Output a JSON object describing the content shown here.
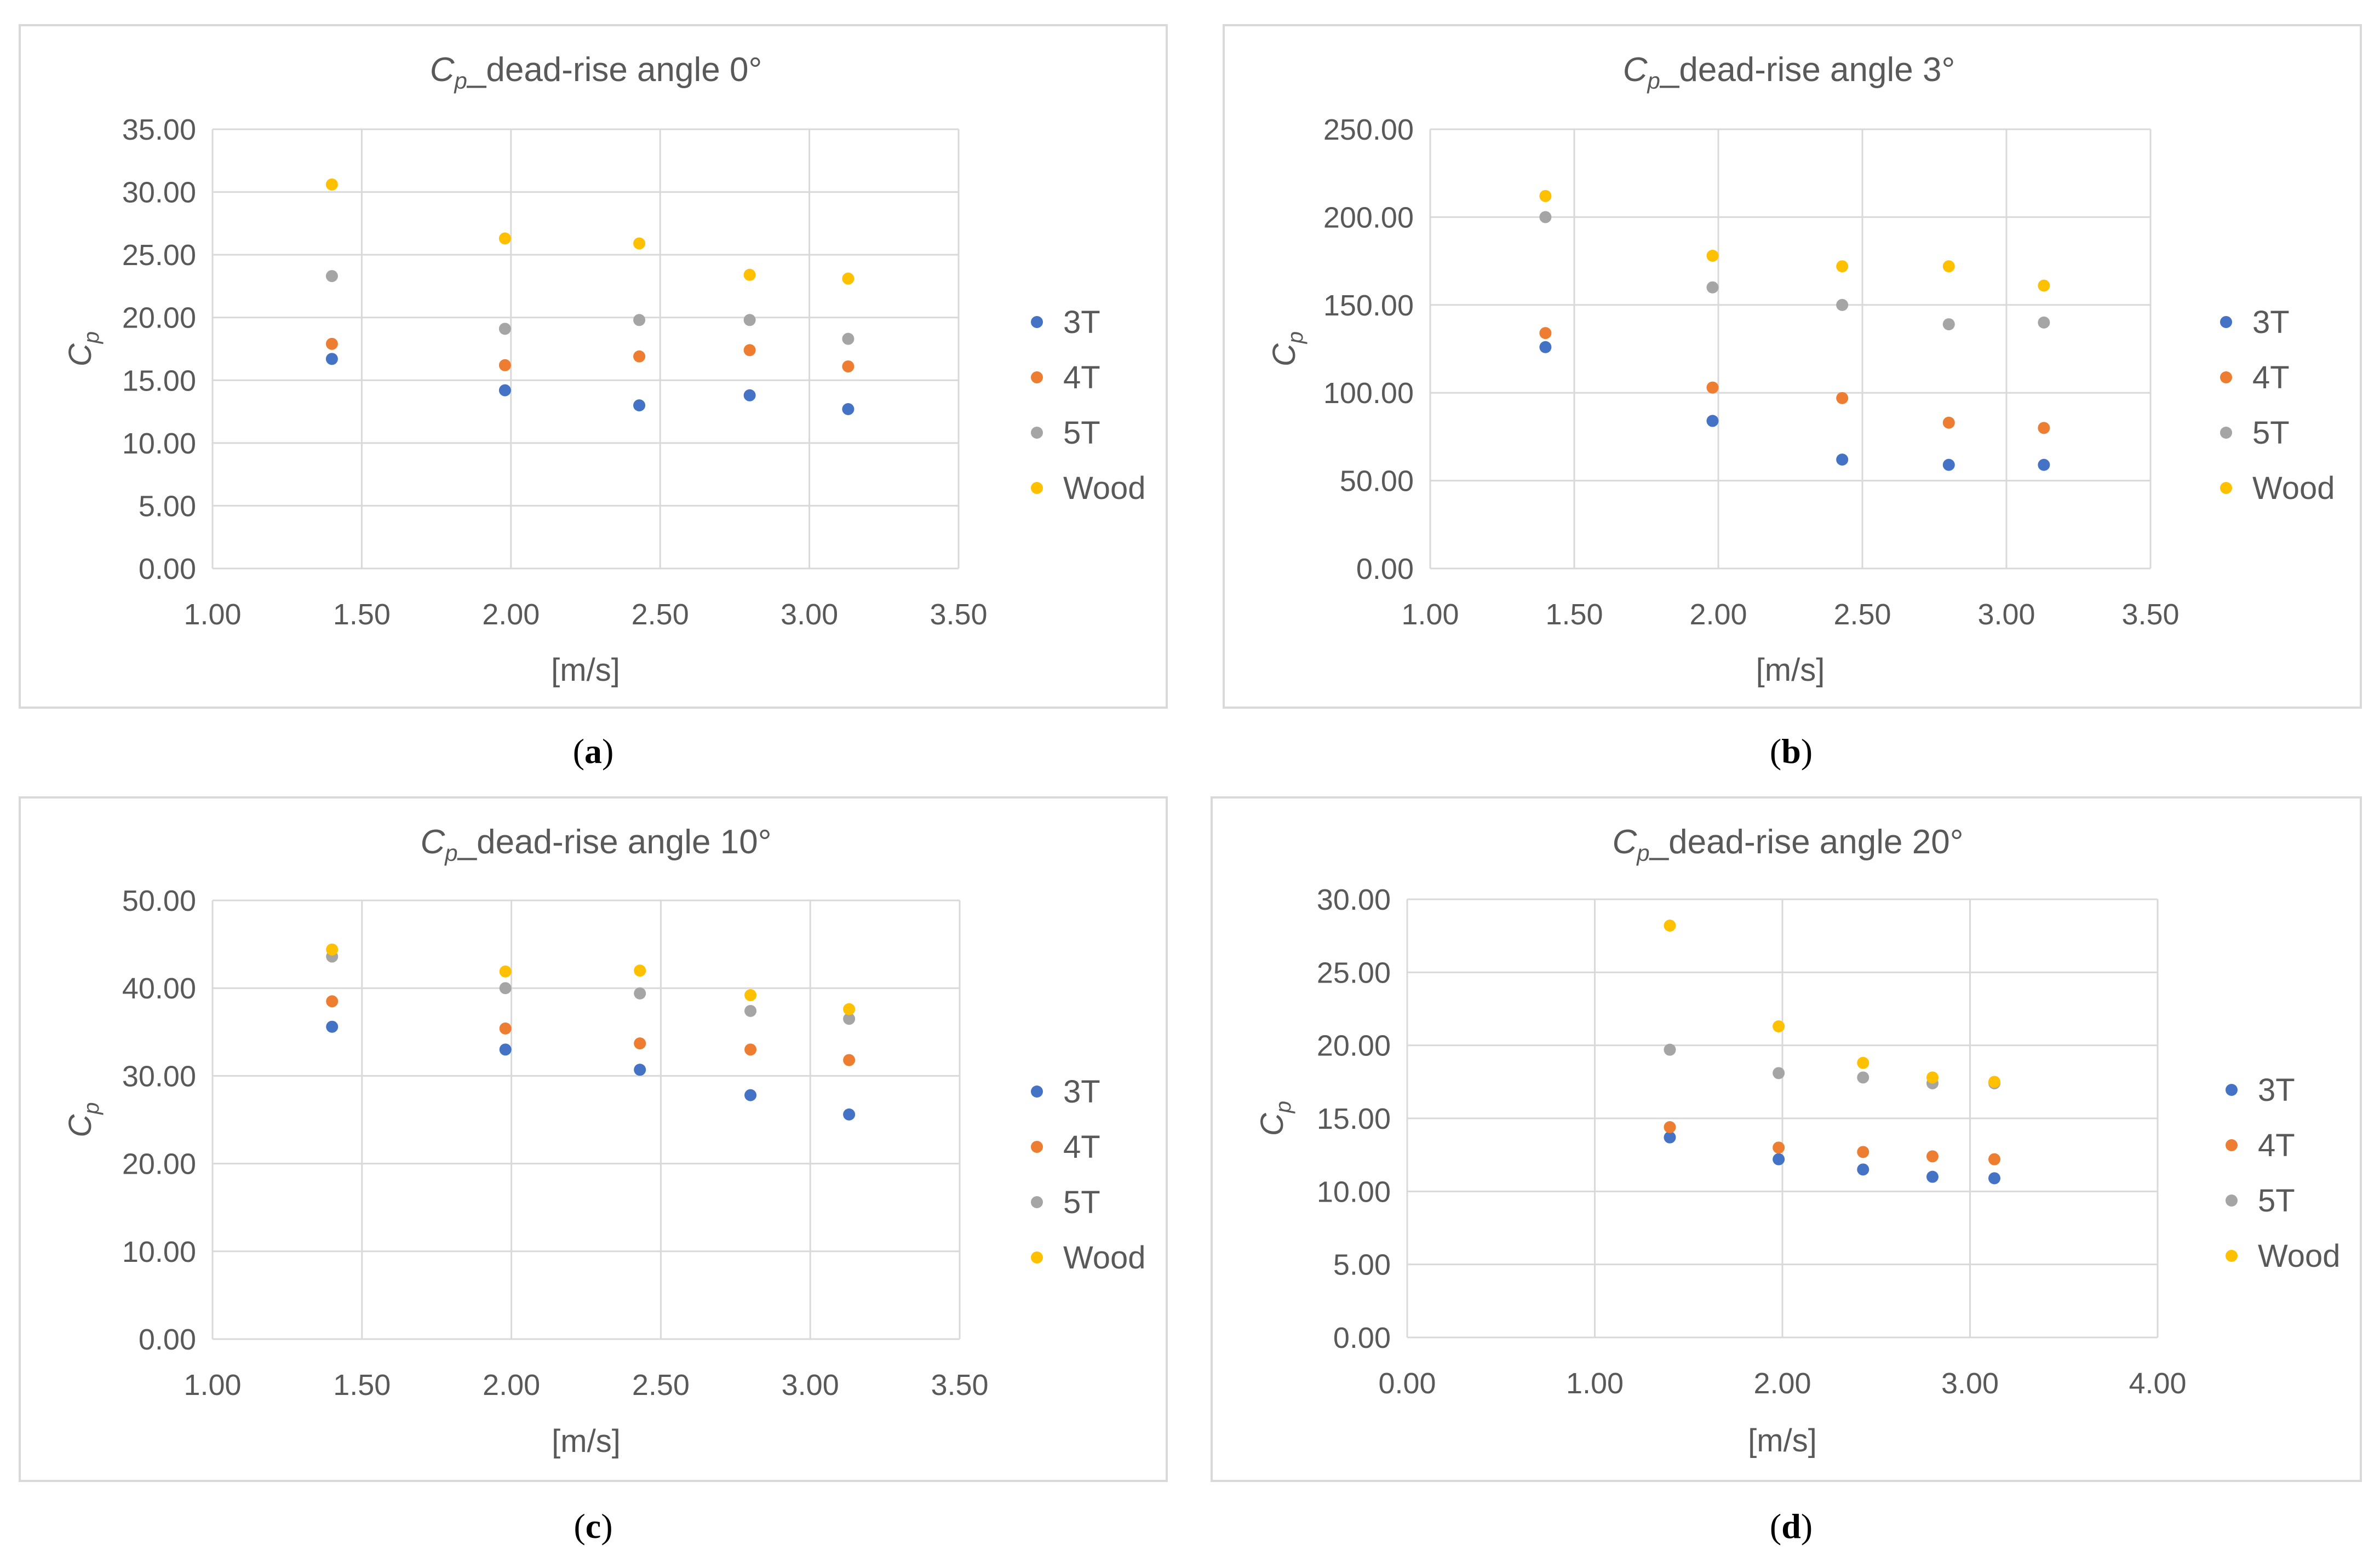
{
  "figure": {
    "captions": [
      "(a)",
      "(b)",
      "(c)",
      "(d)"
    ]
  },
  "chart_data": [
    {
      "type": "scatter",
      "title_symbol": "C",
      "title_subscript": "p",
      "title_suffix": "_dead-rise angle 0°",
      "xlabel": "[m/s]",
      "ylabel_symbol": "C",
      "ylabel_subscript": "p",
      "xlim": [
        1.0,
        3.5
      ],
      "ylim": [
        0,
        35
      ],
      "xticks": [
        "1.00",
        "1.50",
        "2.00",
        "2.50",
        "3.00",
        "3.50"
      ],
      "yticks": [
        "0.00",
        "5.00",
        "10.00",
        "15.00",
        "20.00",
        "25.00",
        "30.00",
        "35.00"
      ],
      "grid": true,
      "legend_position": "right",
      "x": [
        1.4,
        1.98,
        2.43,
        2.8,
        3.13
      ],
      "series": [
        {
          "name": "3T",
          "color": "#4472C4",
          "values": [
            16.7,
            14.2,
            13.0,
            13.8,
            12.7
          ]
        },
        {
          "name": "4T",
          "color": "#ED7D31",
          "values": [
            17.9,
            16.2,
            16.9,
            17.4,
            16.1
          ]
        },
        {
          "name": "5T",
          "color": "#A5A5A5",
          "values": [
            23.3,
            19.1,
            19.8,
            19.8,
            18.3
          ]
        },
        {
          "name": "Wood",
          "color": "#FFC000",
          "values": [
            30.6,
            26.3,
            25.9,
            23.4,
            23.1
          ]
        }
      ]
    },
    {
      "type": "scatter",
      "title_symbol": "C",
      "title_subscript": "p",
      "title_suffix": "_dead-rise angle 3°",
      "xlabel": "[m/s]",
      "ylabel_symbol": "C",
      "ylabel_subscript": "p",
      "xlim": [
        1.0,
        3.5
      ],
      "ylim": [
        0,
        250
      ],
      "xticks": [
        "1.00",
        "1.50",
        "2.00",
        "2.50",
        "3.00",
        "3.50"
      ],
      "yticks": [
        "0.00",
        "50.00",
        "100.00",
        "150.00",
        "200.00",
        "250.00"
      ],
      "grid": true,
      "legend_position": "right",
      "x": [
        1.4,
        1.98,
        2.43,
        2.8,
        3.13
      ],
      "series": [
        {
          "name": "3T",
          "color": "#4472C4",
          "values": [
            126,
            84,
            62,
            59,
            59
          ]
        },
        {
          "name": "4T",
          "color": "#ED7D31",
          "values": [
            134,
            103,
            97,
            83,
            80
          ]
        },
        {
          "name": "5T",
          "color": "#A5A5A5",
          "values": [
            200,
            160,
            150,
            139,
            140
          ]
        },
        {
          "name": "Wood",
          "color": "#FFC000",
          "values": [
            212,
            178,
            172,
            172,
            161
          ]
        }
      ]
    },
    {
      "type": "scatter",
      "title_symbol": "C",
      "title_subscript": "p",
      "title_suffix": "_dead-rise angle 10°",
      "xlabel": "[m/s]",
      "ylabel_symbol": "C",
      "ylabel_subscript": "p",
      "xlim": [
        1.0,
        3.5
      ],
      "ylim": [
        0,
        50
      ],
      "xticks": [
        "1.00",
        "1.50",
        "2.00",
        "2.50",
        "3.00",
        "3.50"
      ],
      "yticks": [
        "0.00",
        "10.00",
        "20.00",
        "30.00",
        "40.00",
        "50.00"
      ],
      "grid": true,
      "legend_position": "right",
      "x": [
        1.4,
        1.98,
        2.43,
        2.8,
        3.13
      ],
      "series": [
        {
          "name": "3T",
          "color": "#4472C4",
          "values": [
            35.6,
            33.0,
            30.7,
            27.8,
            25.6
          ]
        },
        {
          "name": "4T",
          "color": "#ED7D31",
          "values": [
            38.5,
            35.4,
            33.7,
            33.0,
            31.8
          ]
        },
        {
          "name": "5T",
          "color": "#A5A5A5",
          "values": [
            43.6,
            40.0,
            39.4,
            37.4,
            36.5
          ]
        },
        {
          "name": "Wood",
          "color": "#FFC000",
          "values": [
            44.4,
            41.9,
            42.0,
            39.2,
            37.6
          ]
        }
      ]
    },
    {
      "type": "scatter",
      "title_symbol": "C",
      "title_subscript": "p",
      "title_suffix": "_dead-rise angle 20°",
      "xlabel": "[m/s]",
      "ylabel_symbol": "C",
      "ylabel_subscript": "p",
      "xlim": [
        0.0,
        4.0
      ],
      "ylim": [
        0,
        30
      ],
      "xticks": [
        "0.00",
        "1.00",
        "2.00",
        "3.00",
        "4.00"
      ],
      "yticks": [
        "0.00",
        "5.00",
        "10.00",
        "15.00",
        "20.00",
        "25.00",
        "30.00"
      ],
      "grid": true,
      "legend_position": "right",
      "x": [
        1.4,
        1.98,
        2.43,
        2.8,
        3.13
      ],
      "series": [
        {
          "name": "3T",
          "color": "#4472C4",
          "values": [
            13.7,
            12.2,
            11.5,
            11.0,
            10.9
          ]
        },
        {
          "name": "4T",
          "color": "#ED7D31",
          "values": [
            14.4,
            13.0,
            12.7,
            12.4,
            12.2
          ]
        },
        {
          "name": "5T",
          "color": "#A5A5A5",
          "values": [
            19.7,
            18.1,
            17.8,
            17.4,
            17.4
          ]
        },
        {
          "name": "Wood",
          "color": "#FFC000",
          "values": [
            28.2,
            21.3,
            18.8,
            17.8,
            17.5
          ]
        }
      ]
    }
  ]
}
